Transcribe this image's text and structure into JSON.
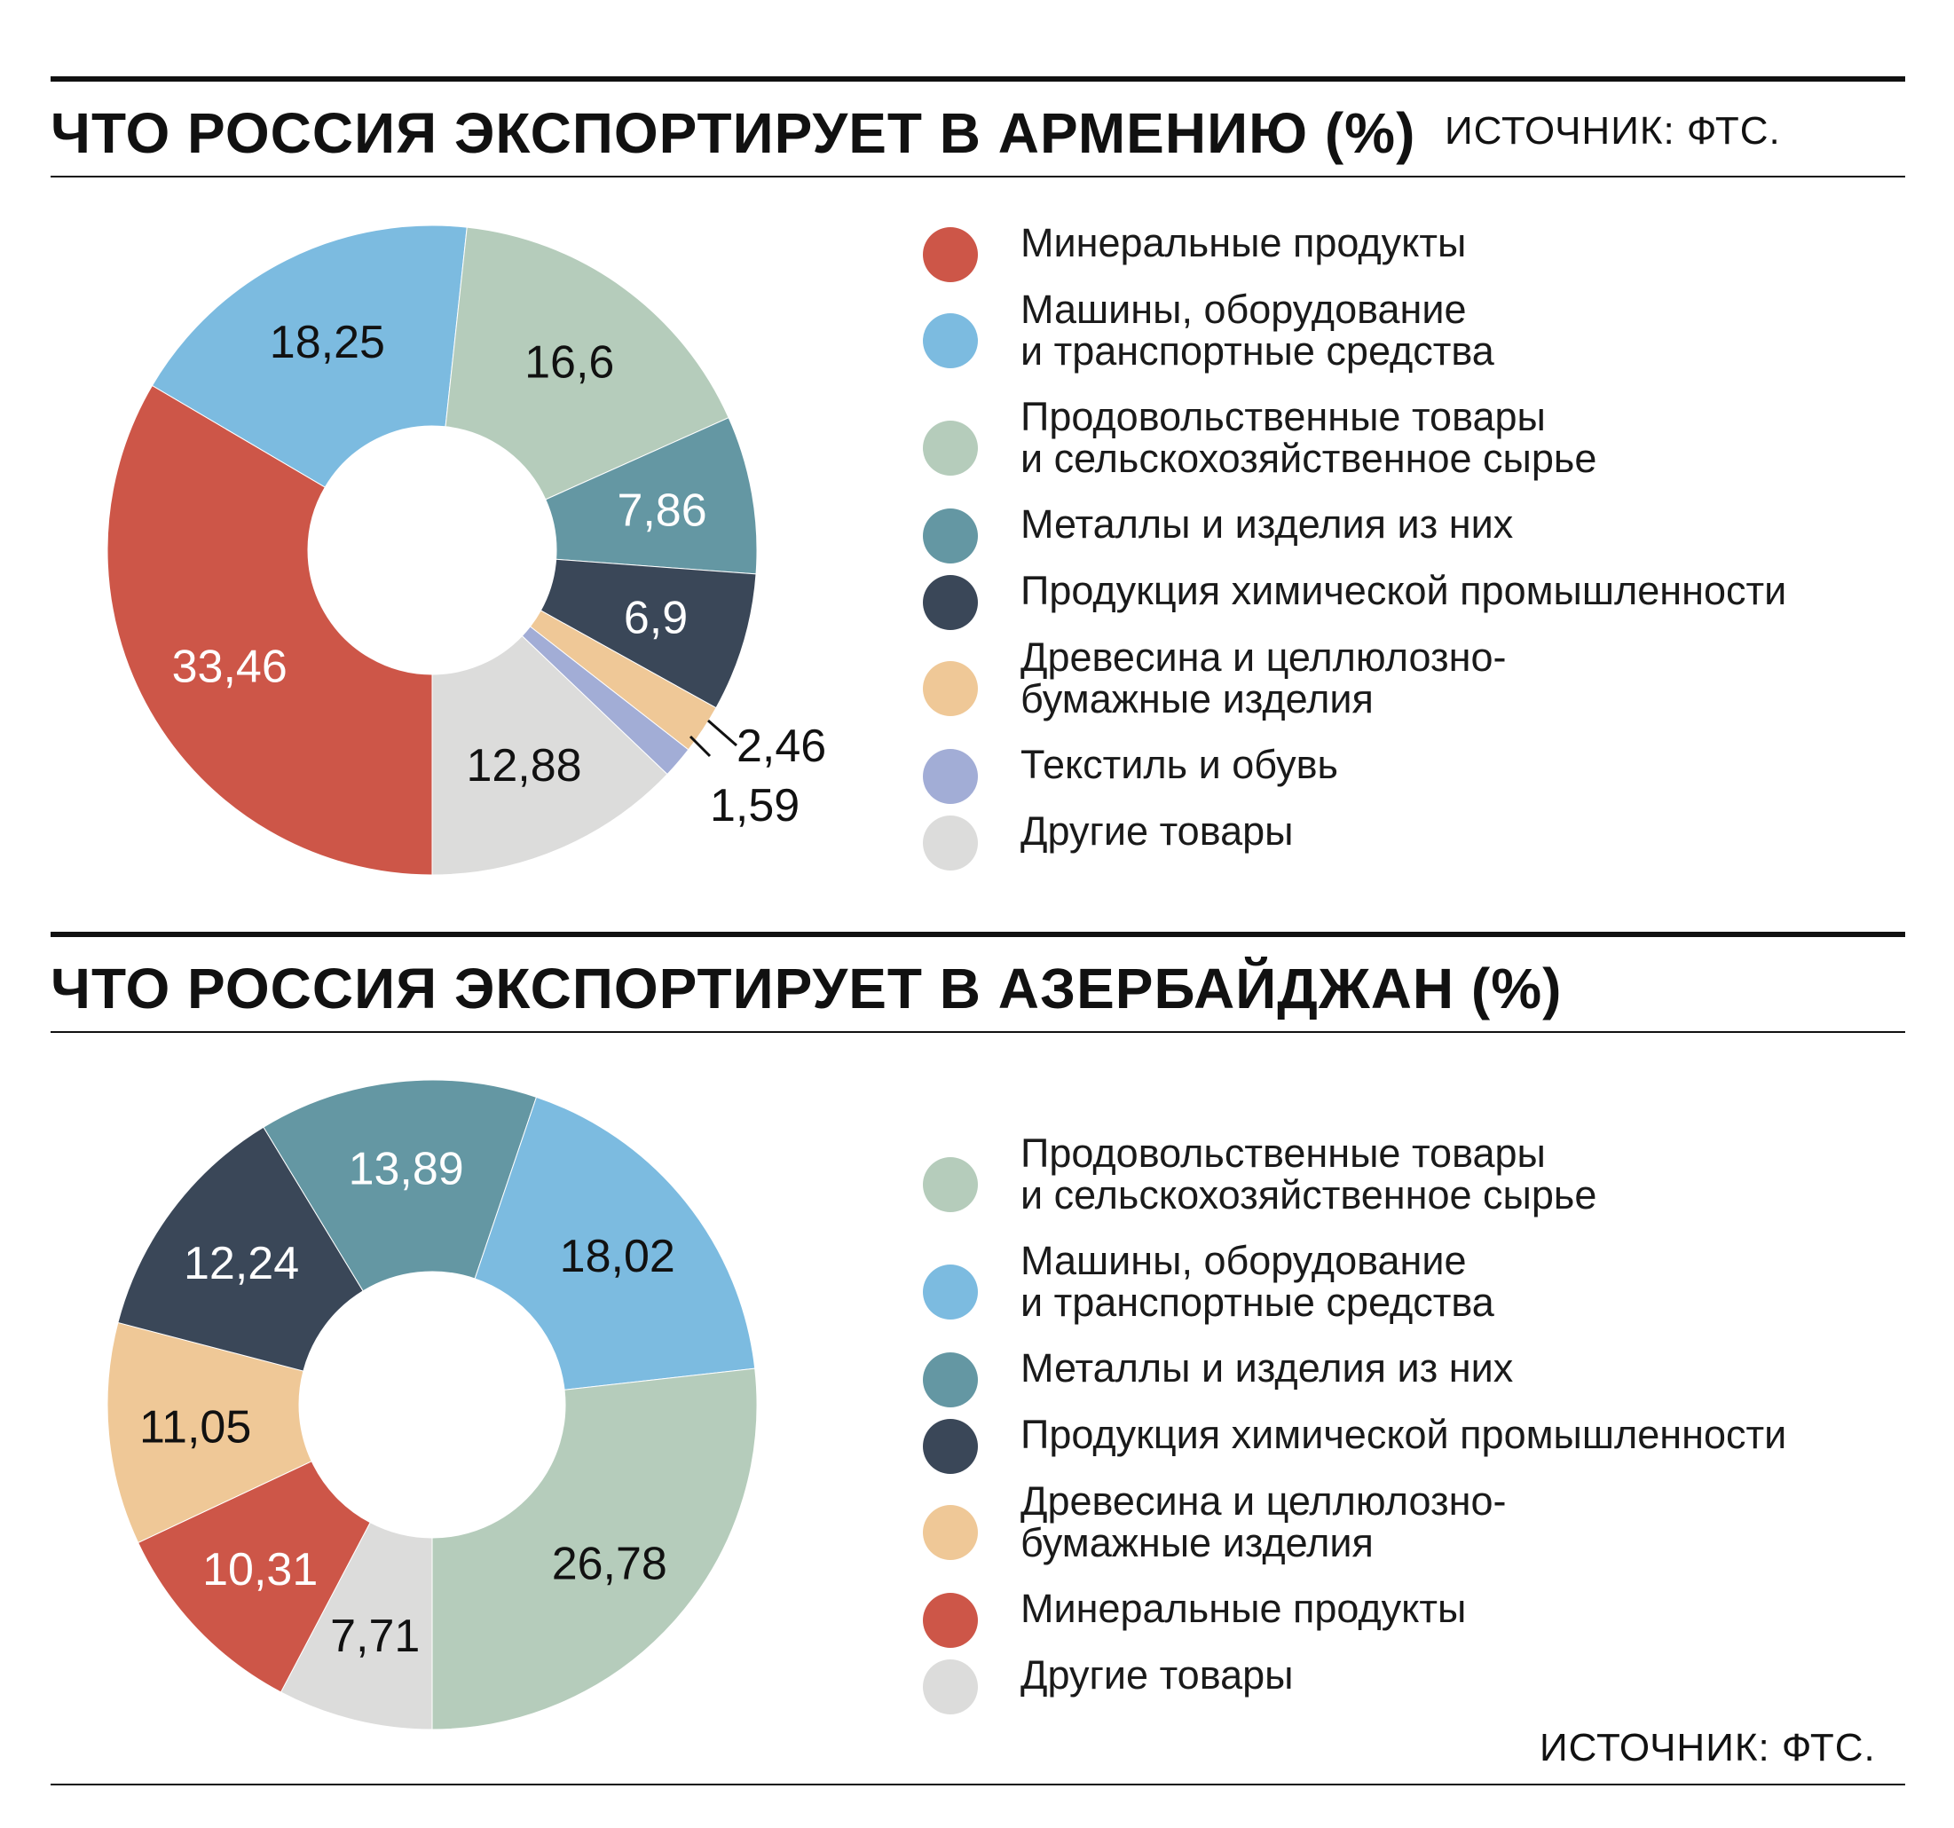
{
  "charts_meta": {
    "source_label": "ИСТОЧНИК: ФТС."
  },
  "chart_data": [
    {
      "type": "pie",
      "title": "ЧТО РОССИЯ ЭКСПОРТИРУЕТ В АРМЕНИЮ (%)",
      "source": "ИСТОЧНИК: ФТС.",
      "start_angle_deg": 180,
      "direction": "counterclockwise",
      "slices": [
        {
          "label_line1": "Минеральные продукты",
          "label_line2": "",
          "value": 33.46,
          "value_text": "33,46",
          "color": "#cd5648",
          "text_color": "#ffffff"
        },
        {
          "label_line1": "Машины, оборудование",
          "label_line2": "и транспортные средства",
          "value": 18.25,
          "value_text": "18,25",
          "color": "#7cbbe0",
          "text_color": "#111111"
        },
        {
          "label_line1": "Продовольственные товары",
          "label_line2": "и сельскохозяйственное сырье",
          "value": 16.6,
          "value_text": "16,6",
          "color": "#b5ccbb",
          "text_color": "#111111"
        },
        {
          "label_line1": "Металлы и изделия из них",
          "label_line2": "",
          "value": 7.86,
          "value_text": "7,86",
          "color": "#6497a3",
          "text_color": "#ffffff"
        },
        {
          "label_line1": "Продукция химической промышленности",
          "label_line2": "",
          "value": 6.9,
          "value_text": "6,9",
          "color": "#3a4758",
          "text_color": "#ffffff"
        },
        {
          "label_line1": "Древесина и целлюлозно-",
          "label_line2": "бумажные изделия",
          "value": 2.46,
          "value_text": "2,46",
          "color": "#efc897",
          "text_color": "#111111",
          "outside": true
        },
        {
          "label_line1": "Текстиль и обувь",
          "label_line2": "",
          "value": 1.59,
          "value_text": "1,59",
          "color": "#a2add6",
          "text_color": "#111111",
          "outside": true
        },
        {
          "label_line1": "Другие товары",
          "label_line2": "",
          "value": 12.88,
          "value_text": "12,88",
          "color": "#dcdcdb",
          "text_color": "#111111"
        }
      ]
    },
    {
      "type": "pie",
      "title": "ЧТО РОССИЯ ЭКСПОРТИРУЕТ В АЗЕРБАЙДЖАН (%)",
      "start_angle_deg": 180,
      "direction": "counterclockwise",
      "slice_order": [
        "Другие товары",
        "Минеральные продукты",
        "Древесина и целлюлозно-",
        "Продукция химической промышленности",
        "Металлы и изделия из них",
        "Машины, оборудование",
        "Продовольственные товары"
      ],
      "slices": [
        {
          "label_line1": "Продовольственные товары",
          "label_line2": "и сельскохозяйственное сырье",
          "value": 26.78,
          "value_text": "26,78",
          "color": "#b5ccbb",
          "text_color": "#111111"
        },
        {
          "label_line1": "Машины, оборудование",
          "label_line2": "и транспортные средства",
          "value": 18.02,
          "value_text": "18,02",
          "color": "#7cbbe0",
          "text_color": "#111111"
        },
        {
          "label_line1": "Металлы и изделия из них",
          "label_line2": "",
          "value": 13.89,
          "value_text": "13,89",
          "color": "#6497a3",
          "text_color": "#ffffff"
        },
        {
          "label_line1": "Продукция химической промышленности",
          "label_line2": "",
          "value": 12.24,
          "value_text": "12,24",
          "color": "#3a4758",
          "text_color": "#ffffff"
        },
        {
          "label_line1": "Древесина и целлюлозно-",
          "label_line2": "бумажные изделия",
          "value": 11.05,
          "value_text": "11,05",
          "color": "#efc897",
          "text_color": "#111111"
        },
        {
          "label_line1": "Минеральные продукты",
          "label_line2": "",
          "value": 10.31,
          "value_text": "10,31",
          "color": "#cd5648",
          "text_color": "#ffffff"
        },
        {
          "label_line1": "Другие товары",
          "label_line2": "",
          "value": 7.71,
          "value_text": "7,71",
          "color": "#dcdcdb",
          "text_color": "#111111"
        }
      ]
    }
  ]
}
